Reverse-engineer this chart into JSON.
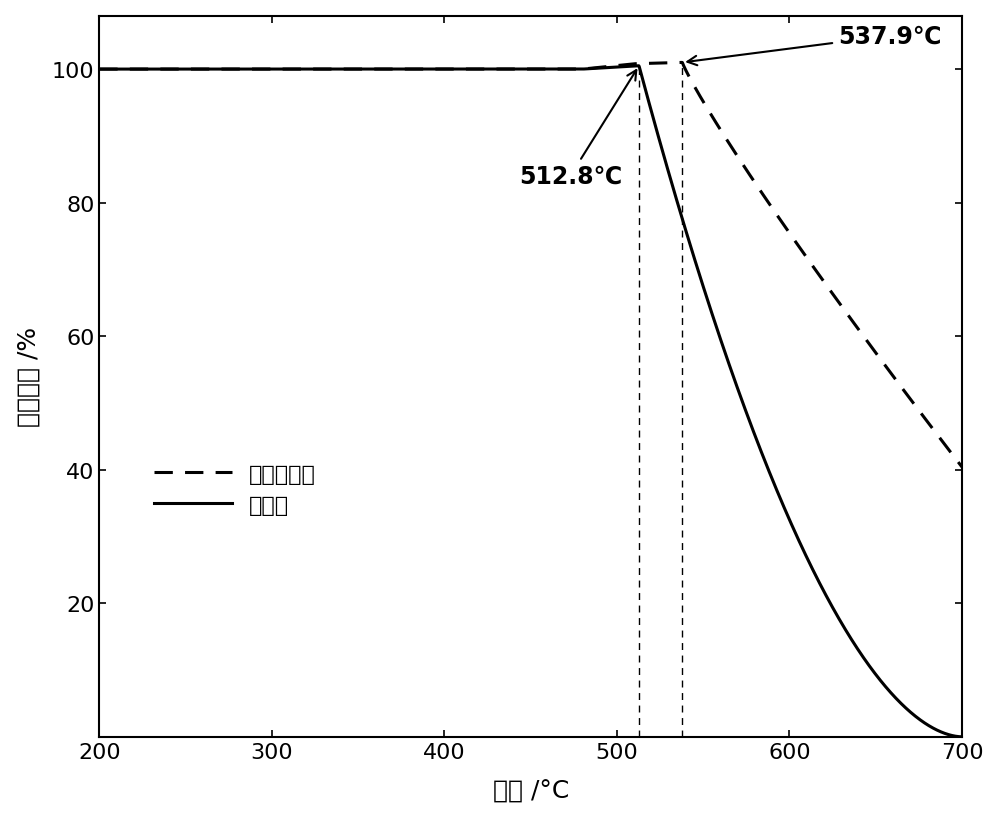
{
  "x_min": 200,
  "x_max": 700,
  "y_min": 0,
  "y_max": 108,
  "xlabel": "温度 /°C",
  "ylabel": "重量损失 /%",
  "legend_dashed": "对比实施例",
  "legend_solid": "实施例",
  "annotation1_temp": 512.8,
  "annotation1_label": "512.8℃",
  "annotation2_temp": 537.9,
  "annotation2_label": "537.9℃",
  "background_color": "#ffffff",
  "line_color": "#000000",
  "label_fontsize": 18,
  "tick_fontsize": 16,
  "legend_fontsize": 16,
  "annot_fontsize": 17
}
